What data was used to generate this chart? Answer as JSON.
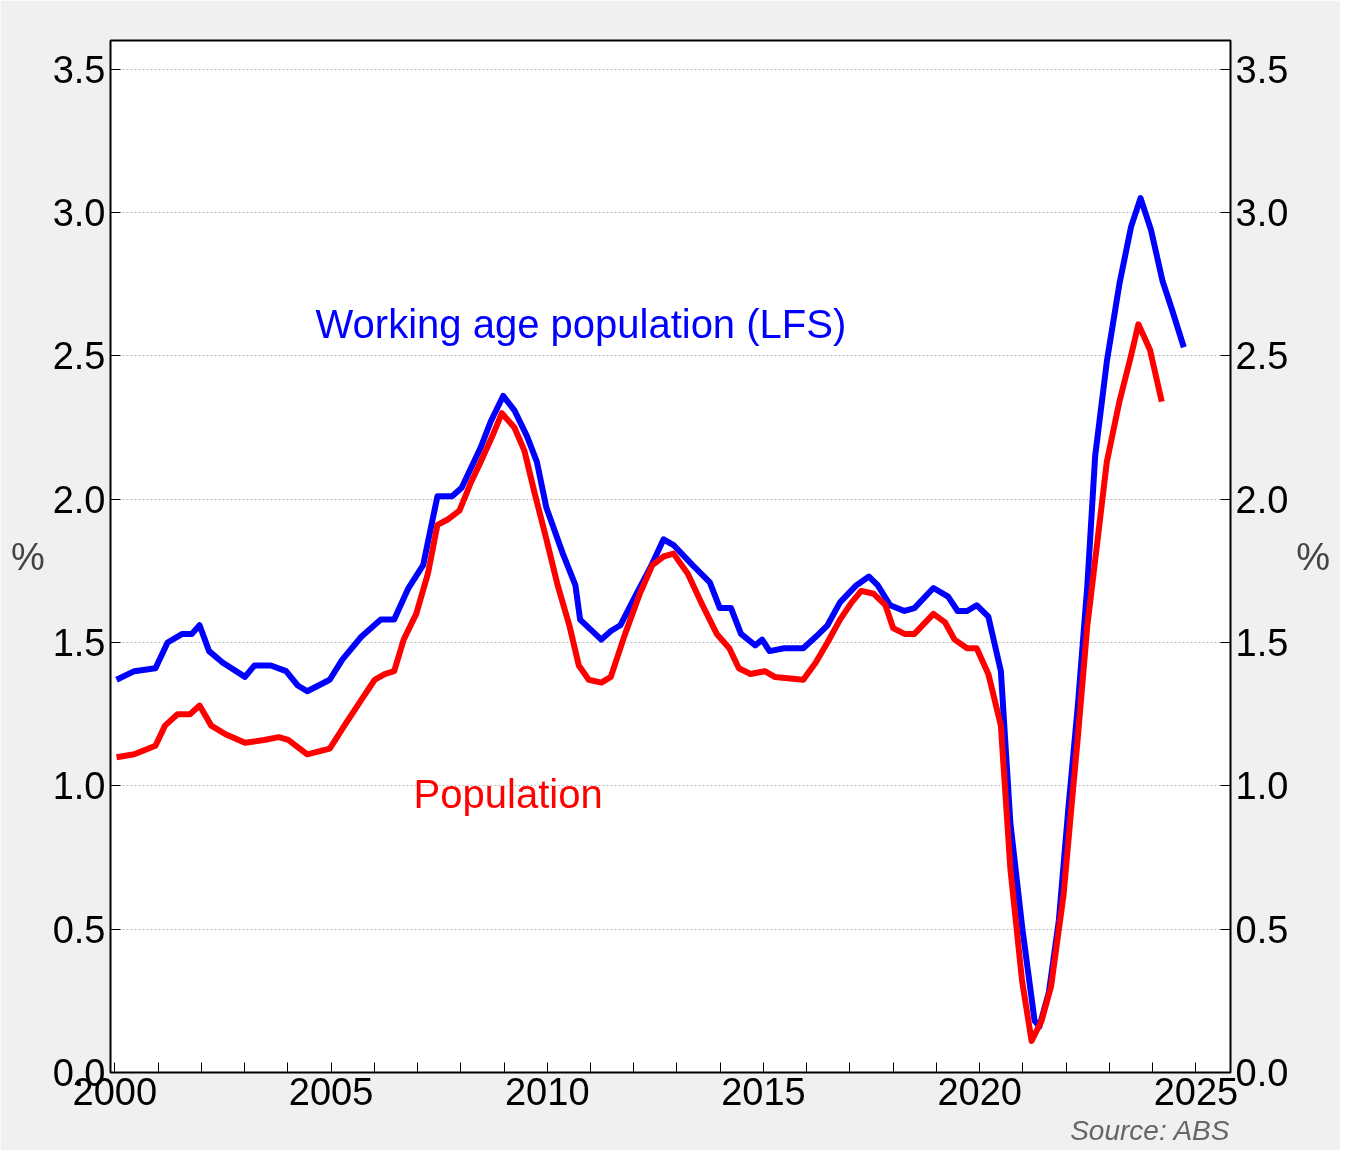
{
  "chart_data": {
    "type": "line",
    "ylabel": "%",
    "y2label": "%",
    "xlim": [
      1999.9,
      2025.8
    ],
    "ylim": [
      0,
      3.6
    ],
    "y2lim": [
      0,
      3.6
    ],
    "xticks": [
      2000,
      {
        "value": 2001,
        "label": null
      },
      {
        "value": 2002,
        "label": null
      },
      {
        "value": 2003,
        "label": null
      },
      {
        "value": 2004,
        "label": null
      },
      2005,
      {
        "value": 2006,
        "label": null
      },
      {
        "value": 2007,
        "label": null
      },
      {
        "value": 2008,
        "label": null
      },
      {
        "value": 2009,
        "label": null
      },
      2010,
      {
        "value": 2011,
        "label": null
      },
      {
        "value": 2012,
        "label": null
      },
      {
        "value": 2013,
        "label": null
      },
      {
        "value": 2014,
        "label": null
      },
      2015,
      {
        "value": 2016,
        "label": null
      },
      {
        "value": 2017,
        "label": null
      },
      {
        "value": 2018,
        "label": null
      },
      {
        "value": 2019,
        "label": null
      },
      2020,
      {
        "value": 2021,
        "label": null
      },
      {
        "value": 2022,
        "label": null
      },
      {
        "value": 2023,
        "label": null
      },
      {
        "value": 2024,
        "label": null
      },
      2025
    ],
    "yticks": [
      {
        "value": 0,
        "label": "0.0"
      },
      0.5,
      {
        "value": 1,
        "label": "1.0"
      },
      1.5,
      {
        "value": 2,
        "label": "2.0"
      },
      2.5,
      {
        "value": 3,
        "label": "3.0"
      },
      3.5
    ],
    "y2ticks": [
      {
        "value": 0,
        "label": "0.0"
      },
      0.5,
      {
        "value": 1,
        "label": "1.0"
      },
      1.5,
      {
        "value": 2,
        "label": "2.0"
      },
      2.5,
      {
        "value": 3,
        "label": "3.0"
      },
      3.5
    ],
    "grid": "y",
    "line_style": "solid",
    "marker": "none",
    "legend": false,
    "series": [
      {
        "name": "Working age population (LFS)",
        "color": "#0000ff",
        "x": [
          2000.04,
          2000.45,
          2000.94,
          2001.22,
          2001.56,
          2001.78,
          2001.96,
          2002.18,
          2002.49,
          2003.01,
          2003.23,
          2003.61,
          2003.96,
          2004.23,
          2004.45,
          2004.97,
          2005.26,
          2005.7,
          2006.15,
          2006.46,
          2006.79,
          2007.13,
          2007.46,
          2007.8,
          2008.02,
          2008.46,
          2008.69,
          2008.98,
          2009.24,
          2009.53,
          2009.76,
          2009.98,
          2010.36,
          2010.65,
          2010.76,
          2011.25,
          2011.47,
          2011.69,
          2012.03,
          2012.38,
          2012.69,
          2012.92,
          2013.36,
          2013.76,
          2013.99,
          2014.25,
          2014.48,
          2014.81,
          2014.97,
          2015.14,
          2015.48,
          2015.92,
          2016.21,
          2016.48,
          2016.77,
          2017.15,
          2017.44,
          2017.64,
          2017.93,
          2018.26,
          2018.49,
          2018.93,
          2019.27,
          2019.49,
          2019.71,
          2019.93,
          2020.2,
          2020.49,
          2020.71,
          2020.98,
          2021.27,
          2021.38,
          2021.6,
          2021.83,
          2022.05,
          2022.27,
          2022.49,
          2022.67,
          2022.94,
          2023.23,
          2023.5,
          2023.72,
          2023.96,
          2024.23,
          2024.45,
          2024.72
        ],
        "values": [
          1.37,
          1.4,
          1.41,
          1.5,
          1.53,
          1.53,
          1.56,
          1.47,
          1.43,
          1.38,
          1.42,
          1.42,
          1.4,
          1.35,
          1.33,
          1.37,
          1.44,
          1.52,
          1.58,
          1.58,
          1.69,
          1.77,
          2.01,
          2.01,
          2.04,
          2.18,
          2.27,
          2.36,
          2.31,
          2.22,
          2.13,
          1.97,
          1.81,
          1.7,
          1.58,
          1.51,
          1.54,
          1.56,
          1.66,
          1.76,
          1.86,
          1.84,
          1.77,
          1.71,
          1.62,
          1.62,
          1.53,
          1.49,
          1.51,
          1.47,
          1.48,
          1.48,
          1.52,
          1.56,
          1.64,
          1.7,
          1.73,
          1.7,
          1.63,
          1.61,
          1.62,
          1.69,
          1.66,
          1.61,
          1.61,
          1.63,
          1.59,
          1.4,
          0.87,
          0.51,
          0.18,
          0.16,
          0.28,
          0.53,
          0.92,
          1.28,
          1.7,
          2.15,
          2.48,
          2.75,
          2.95,
          3.05,
          2.94,
          2.76,
          2.66,
          2.53
        ]
      },
      {
        "name": "Population",
        "color": "#ff0000",
        "x": [
          2000.04,
          2000.45,
          2000.94,
          2001.16,
          2001.45,
          2001.74,
          2001.96,
          2002.23,
          2002.56,
          2003.01,
          2003.45,
          2003.79,
          2004.01,
          2004.45,
          2004.97,
          2005.35,
          2005.7,
          2006.01,
          2006.24,
          2006.46,
          2006.68,
          2006.97,
          2007.24,
          2007.46,
          2007.71,
          2007.97,
          2008.24,
          2008.46,
          2008.73,
          2008.95,
          2009.24,
          2009.47,
          2009.71,
          2009.98,
          2010.24,
          2010.51,
          2010.73,
          2010.96,
          2011.25,
          2011.47,
          2011.8,
          2012.14,
          2012.43,
          2012.69,
          2012.92,
          2013.25,
          2013.59,
          2013.92,
          2014.21,
          2014.43,
          2014.7,
          2015.03,
          2015.26,
          2015.92,
          2016.21,
          2016.48,
          2016.77,
          2017.04,
          2017.26,
          2017.55,
          2017.82,
          2018.0,
          2018.26,
          2018.49,
          2018.93,
          2019.2,
          2019.42,
          2019.71,
          2019.93,
          2020.2,
          2020.49,
          2020.71,
          2020.98,
          2021.2,
          2021.43,
          2021.65,
          2021.94,
          2022.16,
          2022.27,
          2022.49,
          2022.72,
          2022.94,
          2023.23,
          2023.5,
          2023.67,
          2023.94,
          2024.21
        ],
        "values": [
          1.1,
          1.11,
          1.14,
          1.21,
          1.25,
          1.25,
          1.28,
          1.21,
          1.18,
          1.15,
          1.16,
          1.17,
          1.16,
          1.11,
          1.13,
          1.22,
          1.3,
          1.37,
          1.39,
          1.4,
          1.51,
          1.6,
          1.74,
          1.91,
          1.93,
          1.96,
          2.06,
          2.13,
          2.22,
          2.3,
          2.25,
          2.17,
          2.02,
          1.86,
          1.7,
          1.56,
          1.42,
          1.37,
          1.36,
          1.38,
          1.53,
          1.67,
          1.77,
          1.8,
          1.81,
          1.74,
          1.63,
          1.53,
          1.48,
          1.41,
          1.39,
          1.4,
          1.38,
          1.37,
          1.43,
          1.5,
          1.58,
          1.64,
          1.68,
          1.67,
          1.63,
          1.55,
          1.53,
          1.53,
          1.6,
          1.57,
          1.51,
          1.48,
          1.48,
          1.39,
          1.21,
          0.71,
          0.32,
          0.11,
          0.18,
          0.3,
          0.62,
          0.99,
          1.17,
          1.56,
          1.85,
          2.13,
          2.34,
          2.5,
          2.61,
          2.52,
          2.34
        ]
      }
    ],
    "annotations": [
      "Source: ABS"
    ]
  }
}
